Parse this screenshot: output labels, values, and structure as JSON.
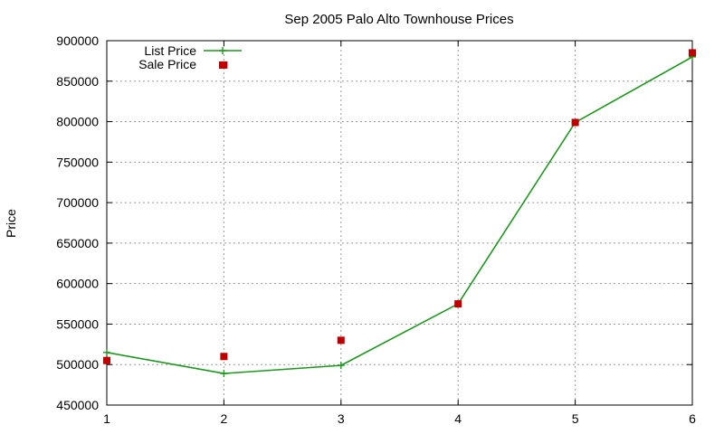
{
  "chart_data": {
    "type": "line",
    "title": "Sep 2005 Palo Alto Townhouse Prices",
    "xlabel": "",
    "ylabel": "Price",
    "xlim": [
      1,
      6
    ],
    "ylim": [
      450000,
      900000
    ],
    "x_ticks": [
      1,
      2,
      3,
      4,
      5,
      6
    ],
    "y_ticks": [
      450000,
      500000,
      550000,
      600000,
      650000,
      700000,
      750000,
      800000,
      850000,
      900000
    ],
    "grid": true,
    "legend_position": "top-left",
    "series": [
      {
        "name": "List Price",
        "style": "line-with-plus-markers",
        "color": "#1a9a1a",
        "points": [
          [
            1,
            515000
          ],
          [
            2,
            489000
          ],
          [
            3,
            499000
          ],
          [
            4,
            575000
          ],
          [
            5,
            799000
          ],
          [
            6,
            880000
          ]
        ]
      },
      {
        "name": "Sale Price",
        "style": "square-markers",
        "color": "#c00000",
        "points": [
          [
            1,
            505000
          ],
          [
            2,
            870000
          ],
          [
            2,
            510000
          ],
          [
            3,
            530000
          ],
          [
            4,
            575000
          ],
          [
            5,
            799000
          ],
          [
            6,
            885000
          ]
        ]
      }
    ]
  }
}
